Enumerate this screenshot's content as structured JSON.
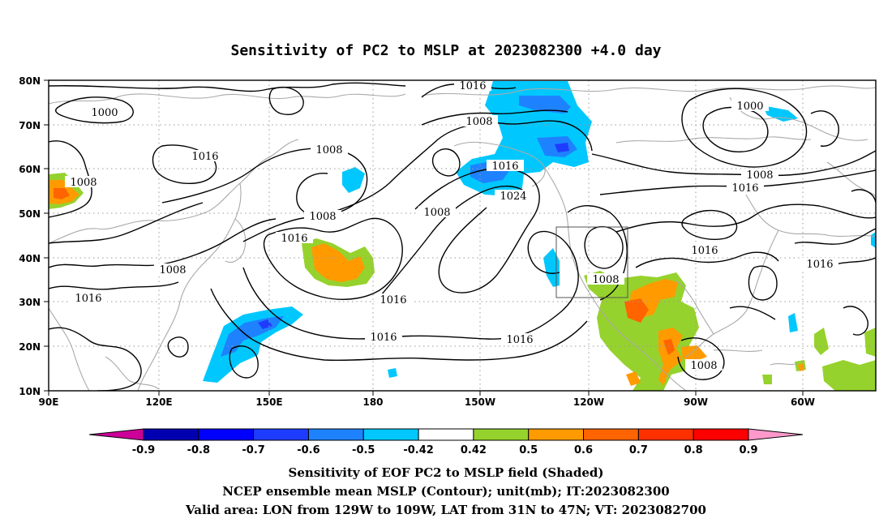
{
  "title": "Sensitivity of PC2 to MSLP at 2023082300 +4.0 day",
  "lat_labels": [
    "80N",
    "70N",
    "60N",
    "50N",
    "40N",
    "30N",
    "20N",
    "10N"
  ],
  "lon_labels": [
    "90E",
    "120E",
    "150E",
    "180",
    "150W",
    "120W",
    "90W",
    "60W"
  ],
  "contour_labels": [
    "1016",
    "1000",
    "1008",
    "1016",
    "1008",
    "1016",
    "1024",
    "1008",
    "1000",
    "1008",
    "1016",
    "1008",
    "1016",
    "1008",
    "1016",
    "1016",
    "1008",
    "1016",
    "1016",
    "1016",
    "1016",
    "1008",
    "1016",
    "1008"
  ],
  "colorbar": {
    "tick_labels": [
      "-0.9",
      "-0.8",
      "-0.7",
      "-0.6",
      "-0.5",
      "-0.42",
      "0.42",
      "0.5",
      "0.6",
      "0.7",
      "0.8",
      "0.9"
    ],
    "colors": [
      "#cc0099",
      "#0000b0",
      "#0000ff",
      "#1e3cff",
      "#1e82ff",
      "#00c8ff",
      "#ffffff",
      "#96d22d",
      "#ff9b00",
      "#ff6400",
      "#ff3000",
      "#ff0000",
      "#ff99cc"
    ]
  },
  "valid_area": {
    "lon_min": -129,
    "lon_max": -109,
    "lat_min": 31,
    "lat_max": 47
  },
  "caption": {
    "line1": "Sensitivity of EOF PC2 to MSLP field (Shaded)",
    "line2": "NCEP ensemble mean MSLP (Contour); unit(mb); IT:2023082300",
    "line3": "Valid area: LON from 129W to 109W, LAT from 31N to 47N; VT: 2023082700"
  }
}
